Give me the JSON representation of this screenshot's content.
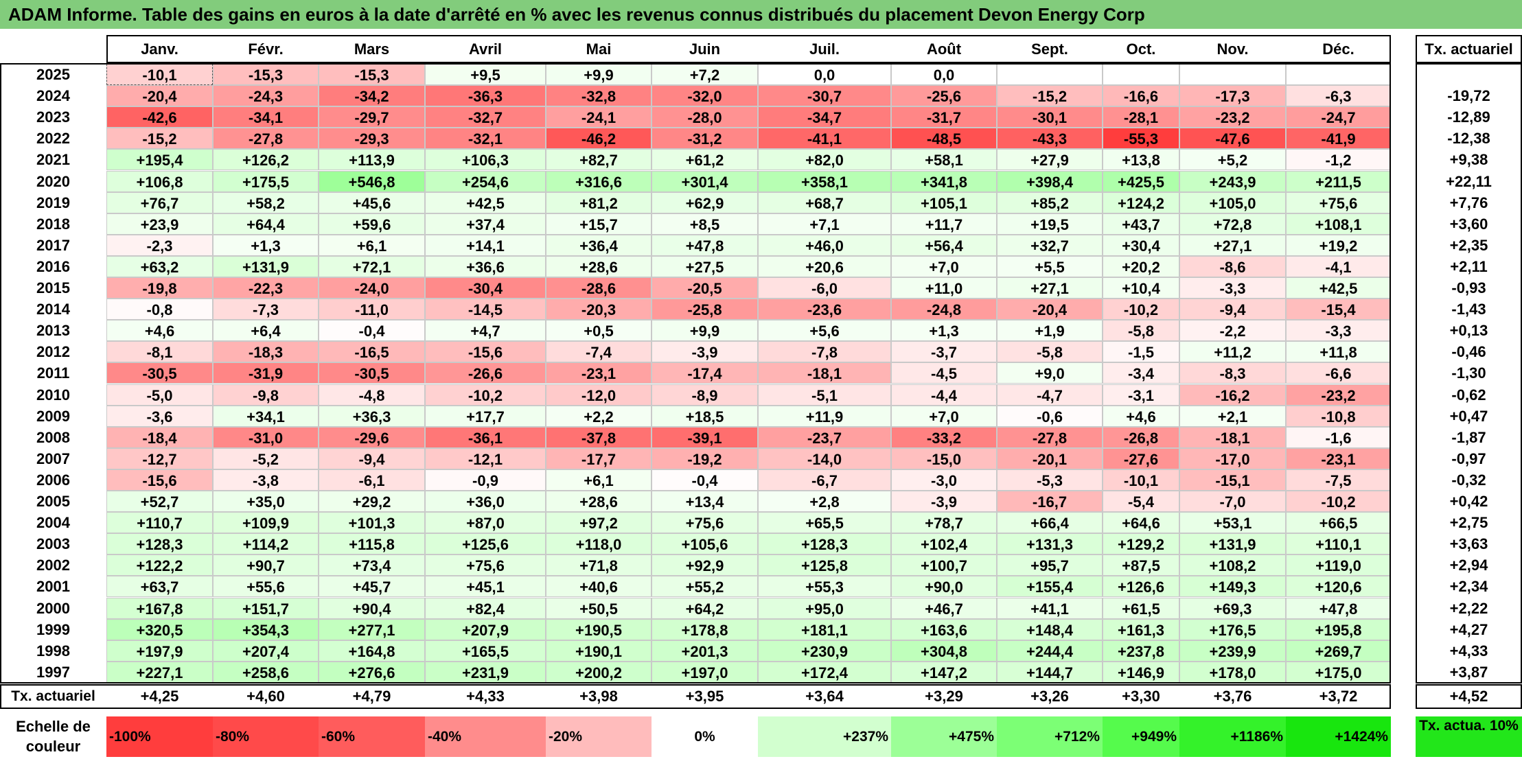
{
  "title": "ADAM Informe. Table des gains en euros à la date d'arrêté en % avec les revenus connus distribués du placement Devon Energy Corp",
  "chart_data": {
    "type": "heatmap",
    "title": "ADAM Informe. Table des gains en euros à la date d'arrêté en % avec les revenus connus distribués du placement Devon Energy Corp",
    "columns": [
      "Janv.",
      "Févr.",
      "Mars",
      "Avril",
      "Mai",
      "Juin",
      "Juil.",
      "Août",
      "Sept.",
      "Oct.",
      "Nov.",
      "Déc."
    ],
    "rate_header": "Tx. actuariel",
    "rows": [
      {
        "year": "2025",
        "values": [
          "-10,1",
          "-15,3",
          "-15,3",
          "+9,5",
          "+9,9",
          "+7,2",
          "0,0",
          "0,0",
          "",
          "",
          "",
          ""
        ],
        "rate": ""
      },
      {
        "year": "2024",
        "values": [
          "-20,4",
          "-24,3",
          "-34,2",
          "-36,3",
          "-32,8",
          "-32,0",
          "-30,7",
          "-25,6",
          "-15,2",
          "-16,6",
          "-17,3",
          "-6,3"
        ],
        "rate": "-19,72"
      },
      {
        "year": "2023",
        "values": [
          "-42,6",
          "-34,1",
          "-29,7",
          "-32,7",
          "-24,1",
          "-28,0",
          "-34,7",
          "-31,7",
          "-30,1",
          "-28,1",
          "-23,2",
          "-24,7"
        ],
        "rate": "-12,89"
      },
      {
        "year": "2022",
        "values": [
          "-15,2",
          "-27,8",
          "-29,3",
          "-32,1",
          "-46,2",
          "-31,2",
          "-41,1",
          "-48,5",
          "-43,3",
          "-55,3",
          "-47,6",
          "-41,9"
        ],
        "rate": "-12,38"
      },
      {
        "year": "2021",
        "values": [
          "+195,4",
          "+126,2",
          "+113,9",
          "+106,3",
          "+82,7",
          "+61,2",
          "+82,0",
          "+58,1",
          "+27,9",
          "+13,8",
          "+5,2",
          "-1,2"
        ],
        "rate": "+9,38"
      },
      {
        "year": "2020",
        "values": [
          "+106,8",
          "+175,5",
          "+546,8",
          "+254,6",
          "+316,6",
          "+301,4",
          "+358,1",
          "+341,8",
          "+398,4",
          "+425,5",
          "+243,9",
          "+211,5"
        ],
        "rate": "+22,11"
      },
      {
        "year": "2019",
        "values": [
          "+76,7",
          "+58,2",
          "+45,6",
          "+42,5",
          "+81,2",
          "+62,9",
          "+68,7",
          "+105,1",
          "+85,2",
          "+124,2",
          "+105,0",
          "+75,6"
        ],
        "rate": "+7,76"
      },
      {
        "year": "2018",
        "values": [
          "+23,9",
          "+64,4",
          "+59,6",
          "+37,4",
          "+15,7",
          "+8,5",
          "+7,1",
          "+11,7",
          "+19,5",
          "+43,7",
          "+72,8",
          "+108,1"
        ],
        "rate": "+3,60"
      },
      {
        "year": "2017",
        "values": [
          "-2,3",
          "+1,3",
          "+6,1",
          "+14,1",
          "+36,4",
          "+47,8",
          "+46,0",
          "+56,4",
          "+32,7",
          "+30,4",
          "+27,1",
          "+19,2"
        ],
        "rate": "+2,35"
      },
      {
        "year": "2016",
        "values": [
          "+63,2",
          "+131,9",
          "+72,1",
          "+36,6",
          "+28,6",
          "+27,5",
          "+20,6",
          "+7,0",
          "+5,5",
          "+20,2",
          "-8,6",
          "-4,1"
        ],
        "rate": "+2,11"
      },
      {
        "year": "2015",
        "values": [
          "-19,8",
          "-22,3",
          "-24,0",
          "-30,4",
          "-28,6",
          "-20,5",
          "-6,0",
          "+11,0",
          "+27,1",
          "+10,4",
          "-3,3",
          "+42,5"
        ],
        "rate": "-0,93"
      },
      {
        "year": "2014",
        "values": [
          "-0,8",
          "-7,3",
          "-11,0",
          "-14,5",
          "-20,3",
          "-25,8",
          "-23,6",
          "-24,8",
          "-20,4",
          "-10,2",
          "-9,4",
          "-15,4"
        ],
        "rate": "-1,43"
      },
      {
        "year": "2013",
        "values": [
          "+4,6",
          "+6,4",
          "-0,4",
          "+4,7",
          "+0,5",
          "+9,9",
          "+5,6",
          "+1,3",
          "+1,9",
          "-5,8",
          "-2,2",
          "-3,3"
        ],
        "rate": "+0,13"
      },
      {
        "year": "2012",
        "values": [
          "-8,1",
          "-18,3",
          "-16,5",
          "-15,6",
          "-7,4",
          "-3,9",
          "-7,8",
          "-3,7",
          "-5,8",
          "-1,5",
          "+11,2",
          "+11,8"
        ],
        "rate": "-0,46"
      },
      {
        "year": "2011",
        "values": [
          "-30,5",
          "-31,9",
          "-30,5",
          "-26,6",
          "-23,1",
          "-17,4",
          "-18,1",
          "-4,5",
          "+9,0",
          "-3,4",
          "-8,3",
          "-6,6"
        ],
        "rate": "-1,30"
      },
      {
        "year": "2010",
        "values": [
          "-5,0",
          "-9,8",
          "-4,8",
          "-10,2",
          "-12,0",
          "-8,9",
          "-5,1",
          "-4,4",
          "-4,7",
          "-3,1",
          "-16,2",
          "-23,2"
        ],
        "rate": "-0,62"
      },
      {
        "year": "2009",
        "values": [
          "-3,6",
          "+34,1",
          "+36,3",
          "+17,7",
          "+2,2",
          "+18,5",
          "+11,9",
          "+7,0",
          "-0,6",
          "+4,6",
          "+2,1",
          "-10,8"
        ],
        "rate": "+0,47"
      },
      {
        "year": "2008",
        "values": [
          "-18,4",
          "-31,0",
          "-29,6",
          "-36,1",
          "-37,8",
          "-39,1",
          "-23,7",
          "-33,2",
          "-27,8",
          "-26,8",
          "-18,1",
          "-1,6"
        ],
        "rate": "-1,87"
      },
      {
        "year": "2007",
        "values": [
          "-12,7",
          "-5,2",
          "-9,4",
          "-12,1",
          "-17,7",
          "-19,2",
          "-14,0",
          "-15,0",
          "-20,1",
          "-27,6",
          "-17,0",
          "-23,1"
        ],
        "rate": "-0,97"
      },
      {
        "year": "2006",
        "values": [
          "-15,6",
          "-3,8",
          "-6,1",
          "-0,9",
          "+6,1",
          "-0,4",
          "-6,7",
          "-3,0",
          "-5,3",
          "-10,1",
          "-15,1",
          "-7,5"
        ],
        "rate": "-0,32"
      },
      {
        "year": "2005",
        "values": [
          "+52,7",
          "+35,0",
          "+29,2",
          "+36,0",
          "+28,6",
          "+13,4",
          "+2,8",
          "-3,9",
          "-16,7",
          "-5,4",
          "-7,0",
          "-10,2"
        ],
        "rate": "+0,42"
      },
      {
        "year": "2004",
        "values": [
          "+110,7",
          "+109,9",
          "+101,3",
          "+87,0",
          "+97,2",
          "+75,6",
          "+65,5",
          "+78,7",
          "+66,4",
          "+64,6",
          "+53,1",
          "+66,5"
        ],
        "rate": "+2,75"
      },
      {
        "year": "2003",
        "values": [
          "+128,3",
          "+114,2",
          "+115,8",
          "+125,6",
          "+118,0",
          "+105,6",
          "+128,3",
          "+102,4",
          "+131,3",
          "+129,2",
          "+131,9",
          "+110,1"
        ],
        "rate": "+3,63"
      },
      {
        "year": "2002",
        "values": [
          "+122,2",
          "+90,7",
          "+73,4",
          "+75,6",
          "+71,8",
          "+92,9",
          "+125,8",
          "+100,7",
          "+95,7",
          "+87,5",
          "+108,2",
          "+119,0"
        ],
        "rate": "+2,94"
      },
      {
        "year": "2001",
        "values": [
          "+63,7",
          "+55,6",
          "+45,7",
          "+45,1",
          "+40,6",
          "+55,2",
          "+55,3",
          "+90,0",
          "+155,4",
          "+126,6",
          "+149,3",
          "+120,6"
        ],
        "rate": "+2,34"
      },
      {
        "year": "2000",
        "values": [
          "+167,8",
          "+151,7",
          "+90,4",
          "+82,4",
          "+50,5",
          "+64,2",
          "+95,0",
          "+46,7",
          "+41,1",
          "+61,5",
          "+69,3",
          "+47,8"
        ],
        "rate": "+2,22"
      },
      {
        "year": "1999",
        "values": [
          "+320,5",
          "+354,3",
          "+277,1",
          "+207,9",
          "+190,5",
          "+178,8",
          "+181,1",
          "+163,6",
          "+148,4",
          "+161,3",
          "+176,5",
          "+195,8"
        ],
        "rate": "+4,27"
      },
      {
        "year": "1998",
        "values": [
          "+197,9",
          "+207,4",
          "+164,8",
          "+165,5",
          "+190,1",
          "+201,3",
          "+230,9",
          "+304,8",
          "+244,4",
          "+237,8",
          "+239,9",
          "+269,7"
        ],
        "rate": "+4,33"
      },
      {
        "year": "1997",
        "values": [
          "+227,1",
          "+258,6",
          "+276,6",
          "+231,9",
          "+200,2",
          "+197,0",
          "+172,4",
          "+147,2",
          "+144,7",
          "+146,9",
          "+178,0",
          "+175,0"
        ],
        "rate": "+3,87"
      }
    ],
    "summary_row": {
      "label": "Tx. actuariel",
      "values": [
        "+4,25",
        "+4,60",
        "+4,79",
        "+4,33",
        "+3,98",
        "+3,95",
        "+3,64",
        "+3,29",
        "+3,26",
        "+3,30",
        "+3,76",
        "+3,72"
      ],
      "rate": "+4,52"
    },
    "scale": {
      "label": "Echelle de couleur",
      "steps": [
        {
          "text": "-100%",
          "color": "#ff3d3d",
          "align": "left"
        },
        {
          "text": "-80%",
          "color": "#ff4a4a",
          "align": "left"
        },
        {
          "text": "-60%",
          "color": "#ff5c5c",
          "align": "left"
        },
        {
          "text": "-40%",
          "color": "#ff8c8c",
          "align": "left"
        },
        {
          "text": "-20%",
          "color": "#ffbcbc",
          "align": "left"
        },
        {
          "text": "0%",
          "color": "#ffffff",
          "align": "center"
        },
        {
          "text": "+237%",
          "color": "#d2ffcf",
          "align": "right"
        },
        {
          "text": "+475%",
          "color": "#9cff97",
          "align": "right"
        },
        {
          "text": "+712%",
          "color": "#7cff75",
          "align": "right"
        },
        {
          "text": "+949%",
          "color": "#55fb4c",
          "align": "right"
        },
        {
          "text": "+1186%",
          "color": "#34f22a",
          "align": "right"
        },
        {
          "text": "+1424%",
          "color": "#18e60e",
          "align": "right"
        }
      ],
      "rate_label": "Tx. actua. 10%",
      "rate_color": "#22e61a"
    }
  }
}
